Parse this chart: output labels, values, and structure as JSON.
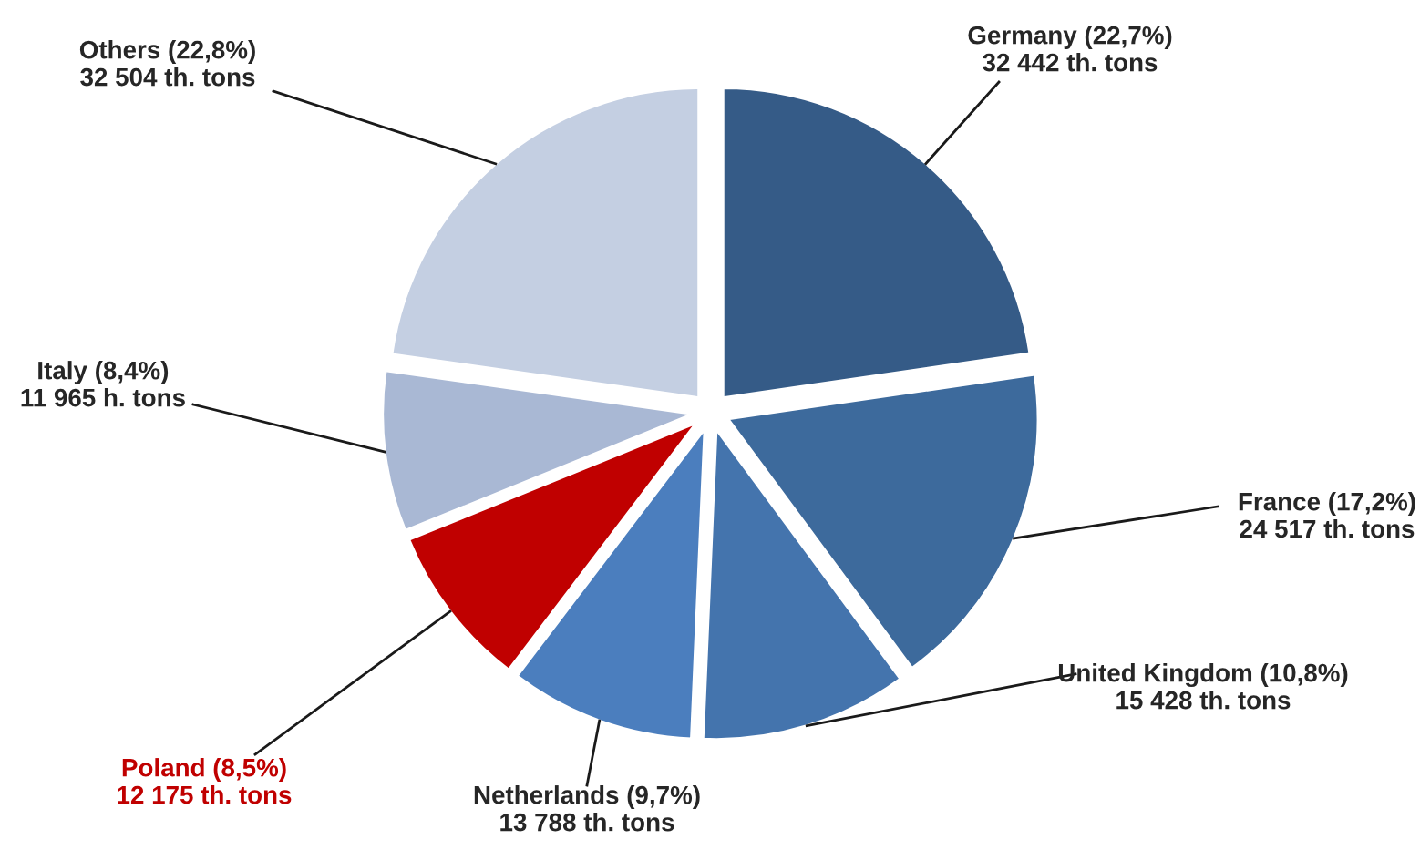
{
  "chart_data": {
    "type": "pie",
    "categories": [
      "Germany",
      "France",
      "United Kingdom",
      "Netherlands",
      "Poland",
      "Italy",
      "Others"
    ],
    "values": [
      32442,
      24517,
      15428,
      13788,
      12175,
      11965,
      32504
    ],
    "colors": [
      "#355b87",
      "#3d6a9c",
      "#4474ad",
      "#4b7ebe",
      "#c00000",
      "#a9b8d4",
      "#c4cfe2"
    ],
    "value_labels": [
      "(22,7%)\n32 442 th. tons",
      "(17,2%)\n24 517 th. tons",
      "(10,8%)\n15 428 th. tons",
      "(9,7%)\n13 788 th. tons",
      "(8,5%)\n12 175 th. tons",
      "(8,4%)\n11 965 h. tons",
      "(22,8%)\n32 504 th. tons"
    ]
  }
}
